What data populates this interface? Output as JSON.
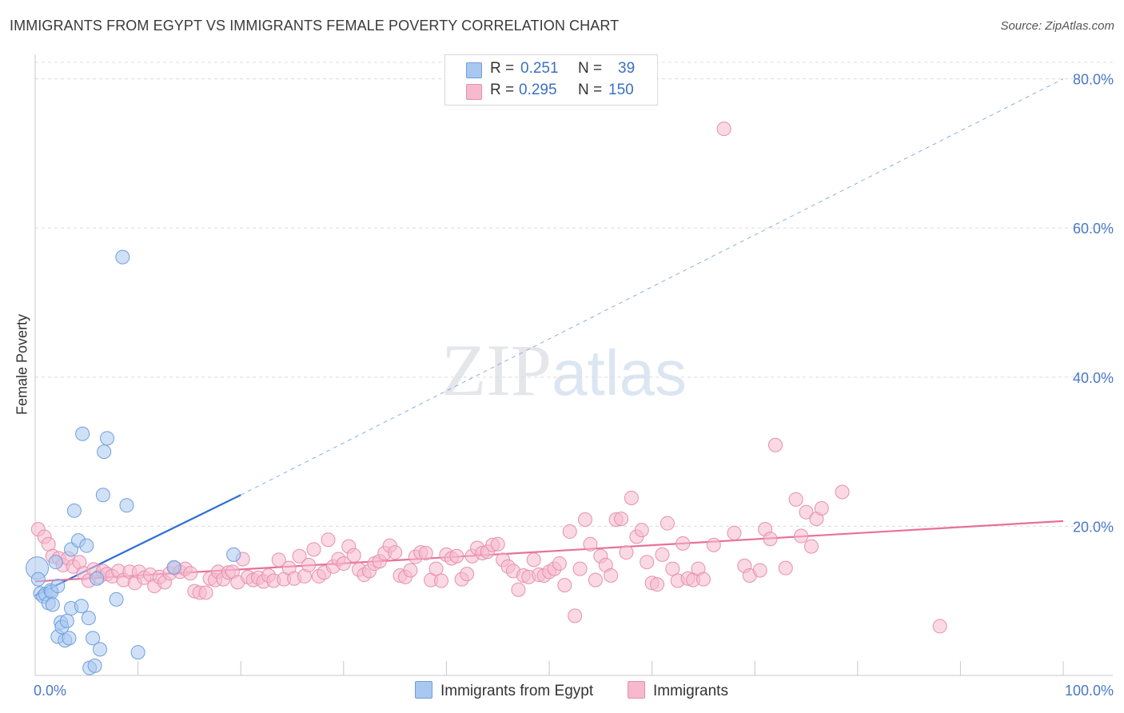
{
  "title": "IMMIGRANTS FROM EGYPT VS IMMIGRANTS FEMALE POVERTY CORRELATION CHART",
  "source": "Source: ZipAtlas.com",
  "watermark": {
    "zip": "ZIP",
    "atlas": "atlas"
  },
  "stats": [
    {
      "r_label": "R =",
      "r_value": "0.251",
      "n_label": "N =",
      "n_value": "39",
      "color": "#a9c8f0"
    },
    {
      "r_label": "R =",
      "r_value": "0.295",
      "n_label": "N =",
      "n_value": "150",
      "color": "#f6b9cd"
    }
  ],
  "legend": [
    {
      "label": "Immigrants from Egypt",
      "color": "#a9c8f0"
    },
    {
      "label": "Immigrants",
      "color": "#f6b9cd"
    }
  ],
  "chart_data": {
    "type": "scatter",
    "title": "IMMIGRANTS FROM EGYPT VS IMMIGRANTS FEMALE POVERTY CORRELATION CHART",
    "xlabel": "",
    "ylabel": "Female Poverty",
    "xlim": [
      0,
      100
    ],
    "ylim": [
      0,
      82
    ],
    "x_tick_labels": [
      {
        "v": 0,
        "label": "0.0%"
      },
      {
        "v": 100,
        "label": "100.0%"
      }
    ],
    "y_tick_labels": [
      {
        "v": 20,
        "label": "20.0%"
      },
      {
        "v": 40,
        "label": "40.0%"
      },
      {
        "v": 60,
        "label": "60.0%"
      },
      {
        "v": 80,
        "label": "80.0%"
      }
    ],
    "grid": "horizontal dashed",
    "legend_position": "bottom",
    "series": [
      {
        "name": "Immigrants from Egypt",
        "color": "#a9c8f0",
        "stroke": "#6f9fdc",
        "points": [
          [
            0.2,
            14.4
          ],
          [
            0.3,
            12.9
          ],
          [
            0.5,
            11.0
          ],
          [
            0.8,
            10.6
          ],
          [
            1.0,
            10.9
          ],
          [
            1.3,
            9.7
          ],
          [
            1.5,
            11.4
          ],
          [
            1.6,
            11.2
          ],
          [
            1.7,
            9.5
          ],
          [
            2.0,
            15.2
          ],
          [
            2.2,
            12.0
          ],
          [
            2.2,
            5.2
          ],
          [
            2.5,
            7.1
          ],
          [
            2.6,
            6.5
          ],
          [
            2.9,
            4.7
          ],
          [
            3.1,
            7.3
          ],
          [
            3.3,
            5.0
          ],
          [
            3.5,
            16.9
          ],
          [
            3.5,
            9.0
          ],
          [
            3.8,
            22.1
          ],
          [
            4.2,
            18.1
          ],
          [
            4.5,
            9.3
          ],
          [
            4.6,
            32.4
          ],
          [
            5.0,
            17.4
          ],
          [
            5.2,
            7.7
          ],
          [
            5.3,
            1.0
          ],
          [
            5.6,
            5.0
          ],
          [
            5.8,
            1.3
          ],
          [
            6.0,
            13.0
          ],
          [
            6.3,
            3.5
          ],
          [
            6.6,
            24.2
          ],
          [
            6.7,
            30.0
          ],
          [
            7.0,
            31.8
          ],
          [
            7.9,
            10.2
          ],
          [
            8.5,
            56.1
          ],
          [
            8.9,
            22.8
          ],
          [
            10.0,
            3.1
          ],
          [
            13.5,
            14.5
          ],
          [
            19.3,
            16.2
          ]
        ],
        "trend": {
          "x": [
            0,
            20
          ],
          "y": [
            10.7,
            24.2
          ],
          "extended_to": [
            100,
            80.0
          ]
        }
      },
      {
        "name": "Immigrants",
        "color": "#f6b9cd",
        "stroke": "#e690ad",
        "points": [
          [
            0.3,
            19.6
          ],
          [
            0.9,
            18.6
          ],
          [
            1.3,
            17.6
          ],
          [
            1.7,
            16.0
          ],
          [
            2.3,
            15.7
          ],
          [
            2.7,
            14.8
          ],
          [
            3.2,
            15.7
          ],
          [
            3.7,
            14.6
          ],
          [
            4.3,
            15.2
          ],
          [
            4.7,
            13.7
          ],
          [
            5.2,
            12.7
          ],
          [
            5.7,
            14.2
          ],
          [
            6.2,
            13.2
          ],
          [
            6.6,
            14.0
          ],
          [
            7.0,
            13.6
          ],
          [
            7.5,
            13.3
          ],
          [
            8.1,
            14.0
          ],
          [
            8.6,
            12.8
          ],
          [
            9.2,
            13.9
          ],
          [
            9.7,
            12.4
          ],
          [
            10.1,
            13.9
          ],
          [
            10.6,
            13.1
          ],
          [
            11.2,
            13.5
          ],
          [
            11.6,
            12.0
          ],
          [
            12.1,
            13.2
          ],
          [
            12.6,
            12.5
          ],
          [
            13.1,
            13.7
          ],
          [
            13.6,
            14.4
          ],
          [
            14.1,
            13.9
          ],
          [
            14.6,
            14.3
          ],
          [
            15.1,
            13.7
          ],
          [
            15.5,
            11.3
          ],
          [
            16.0,
            11.1
          ],
          [
            16.6,
            11.1
          ],
          [
            17.0,
            13.0
          ],
          [
            17.5,
            12.8
          ],
          [
            17.8,
            13.9
          ],
          [
            18.3,
            12.9
          ],
          [
            18.8,
            13.8
          ],
          [
            19.2,
            13.9
          ],
          [
            19.7,
            12.5
          ],
          [
            20.2,
            15.6
          ],
          [
            20.7,
            13.2
          ],
          [
            21.2,
            12.8
          ],
          [
            21.7,
            13.1
          ],
          [
            22.2,
            12.6
          ],
          [
            22.7,
            13.4
          ],
          [
            23.2,
            12.7
          ],
          [
            23.7,
            15.5
          ],
          [
            24.2,
            12.9
          ],
          [
            24.7,
            14.4
          ],
          [
            25.2,
            13.0
          ],
          [
            25.7,
            16.0
          ],
          [
            26.2,
            13.3
          ],
          [
            26.6,
            14.8
          ],
          [
            27.1,
            16.9
          ],
          [
            27.6,
            13.3
          ],
          [
            28.1,
            13.8
          ],
          [
            28.5,
            18.2
          ],
          [
            29.0,
            14.6
          ],
          [
            29.5,
            15.6
          ],
          [
            30.0,
            15.0
          ],
          [
            30.5,
            17.3
          ],
          [
            31.0,
            16.1
          ],
          [
            31.5,
            14.2
          ],
          [
            32.0,
            13.5
          ],
          [
            32.5,
            14.0
          ],
          [
            33.0,
            15.0
          ],
          [
            33.5,
            15.3
          ],
          [
            34.0,
            16.4
          ],
          [
            34.5,
            17.4
          ],
          [
            35.0,
            16.5
          ],
          [
            35.5,
            13.4
          ],
          [
            36.0,
            13.2
          ],
          [
            36.5,
            14.1
          ],
          [
            37.0,
            15.9
          ],
          [
            37.5,
            16.5
          ],
          [
            38.0,
            16.4
          ],
          [
            38.5,
            12.8
          ],
          [
            39.0,
            14.3
          ],
          [
            39.5,
            12.7
          ],
          [
            40.0,
            16.2
          ],
          [
            40.5,
            15.7
          ],
          [
            41.0,
            16.0
          ],
          [
            41.5,
            12.9
          ],
          [
            42.0,
            13.6
          ],
          [
            42.5,
            16.0
          ],
          [
            43.0,
            17.1
          ],
          [
            43.5,
            16.4
          ],
          [
            44.0,
            16.6
          ],
          [
            44.5,
            17.5
          ],
          [
            45.0,
            17.6
          ],
          [
            45.5,
            15.5
          ],
          [
            46.0,
            14.6
          ],
          [
            46.5,
            14.0
          ],
          [
            47.0,
            11.5
          ],
          [
            47.5,
            13.4
          ],
          [
            48.0,
            13.2
          ],
          [
            48.5,
            15.5
          ],
          [
            49.0,
            13.5
          ],
          [
            49.5,
            13.4
          ],
          [
            50.0,
            13.9
          ],
          [
            50.5,
            14.3
          ],
          [
            51.0,
            15.0
          ],
          [
            51.5,
            12.1
          ],
          [
            52.0,
            19.3
          ],
          [
            52.5,
            8.0
          ],
          [
            53.0,
            14.3
          ],
          [
            53.5,
            20.9
          ],
          [
            54.0,
            17.6
          ],
          [
            54.5,
            12.8
          ],
          [
            55.0,
            16.0
          ],
          [
            55.5,
            14.8
          ],
          [
            56.0,
            13.4
          ],
          [
            56.5,
            20.9
          ],
          [
            57.0,
            21.0
          ],
          [
            57.5,
            16.5
          ],
          [
            58.0,
            23.8
          ],
          [
            58.5,
            18.6
          ],
          [
            59.0,
            19.5
          ],
          [
            59.5,
            15.2
          ],
          [
            60.0,
            12.4
          ],
          [
            60.5,
            12.2
          ],
          [
            61.0,
            16.2
          ],
          [
            61.5,
            20.4
          ],
          [
            62.0,
            14.3
          ],
          [
            62.5,
            12.7
          ],
          [
            63.0,
            17.7
          ],
          [
            63.5,
            13.0
          ],
          [
            64.0,
            12.8
          ],
          [
            64.5,
            14.3
          ],
          [
            65.0,
            12.9
          ],
          [
            66.0,
            17.5
          ],
          [
            67.0,
            73.3
          ],
          [
            68.0,
            19.1
          ],
          [
            69.0,
            14.7
          ],
          [
            69.5,
            13.4
          ],
          [
            70.5,
            14.1
          ],
          [
            71.0,
            19.6
          ],
          [
            71.5,
            18.3
          ],
          [
            72.0,
            30.9
          ],
          [
            73.0,
            14.4
          ],
          [
            74.0,
            23.6
          ],
          [
            74.5,
            18.7
          ],
          [
            75.0,
            21.9
          ],
          [
            75.5,
            17.3
          ],
          [
            76.0,
            21.0
          ],
          [
            76.5,
            22.4
          ],
          [
            78.5,
            24.6
          ],
          [
            88.0,
            6.6
          ]
        ],
        "trend": {
          "x": [
            0,
            100
          ],
          "y": [
            12.6,
            20.7
          ]
        }
      }
    ]
  }
}
